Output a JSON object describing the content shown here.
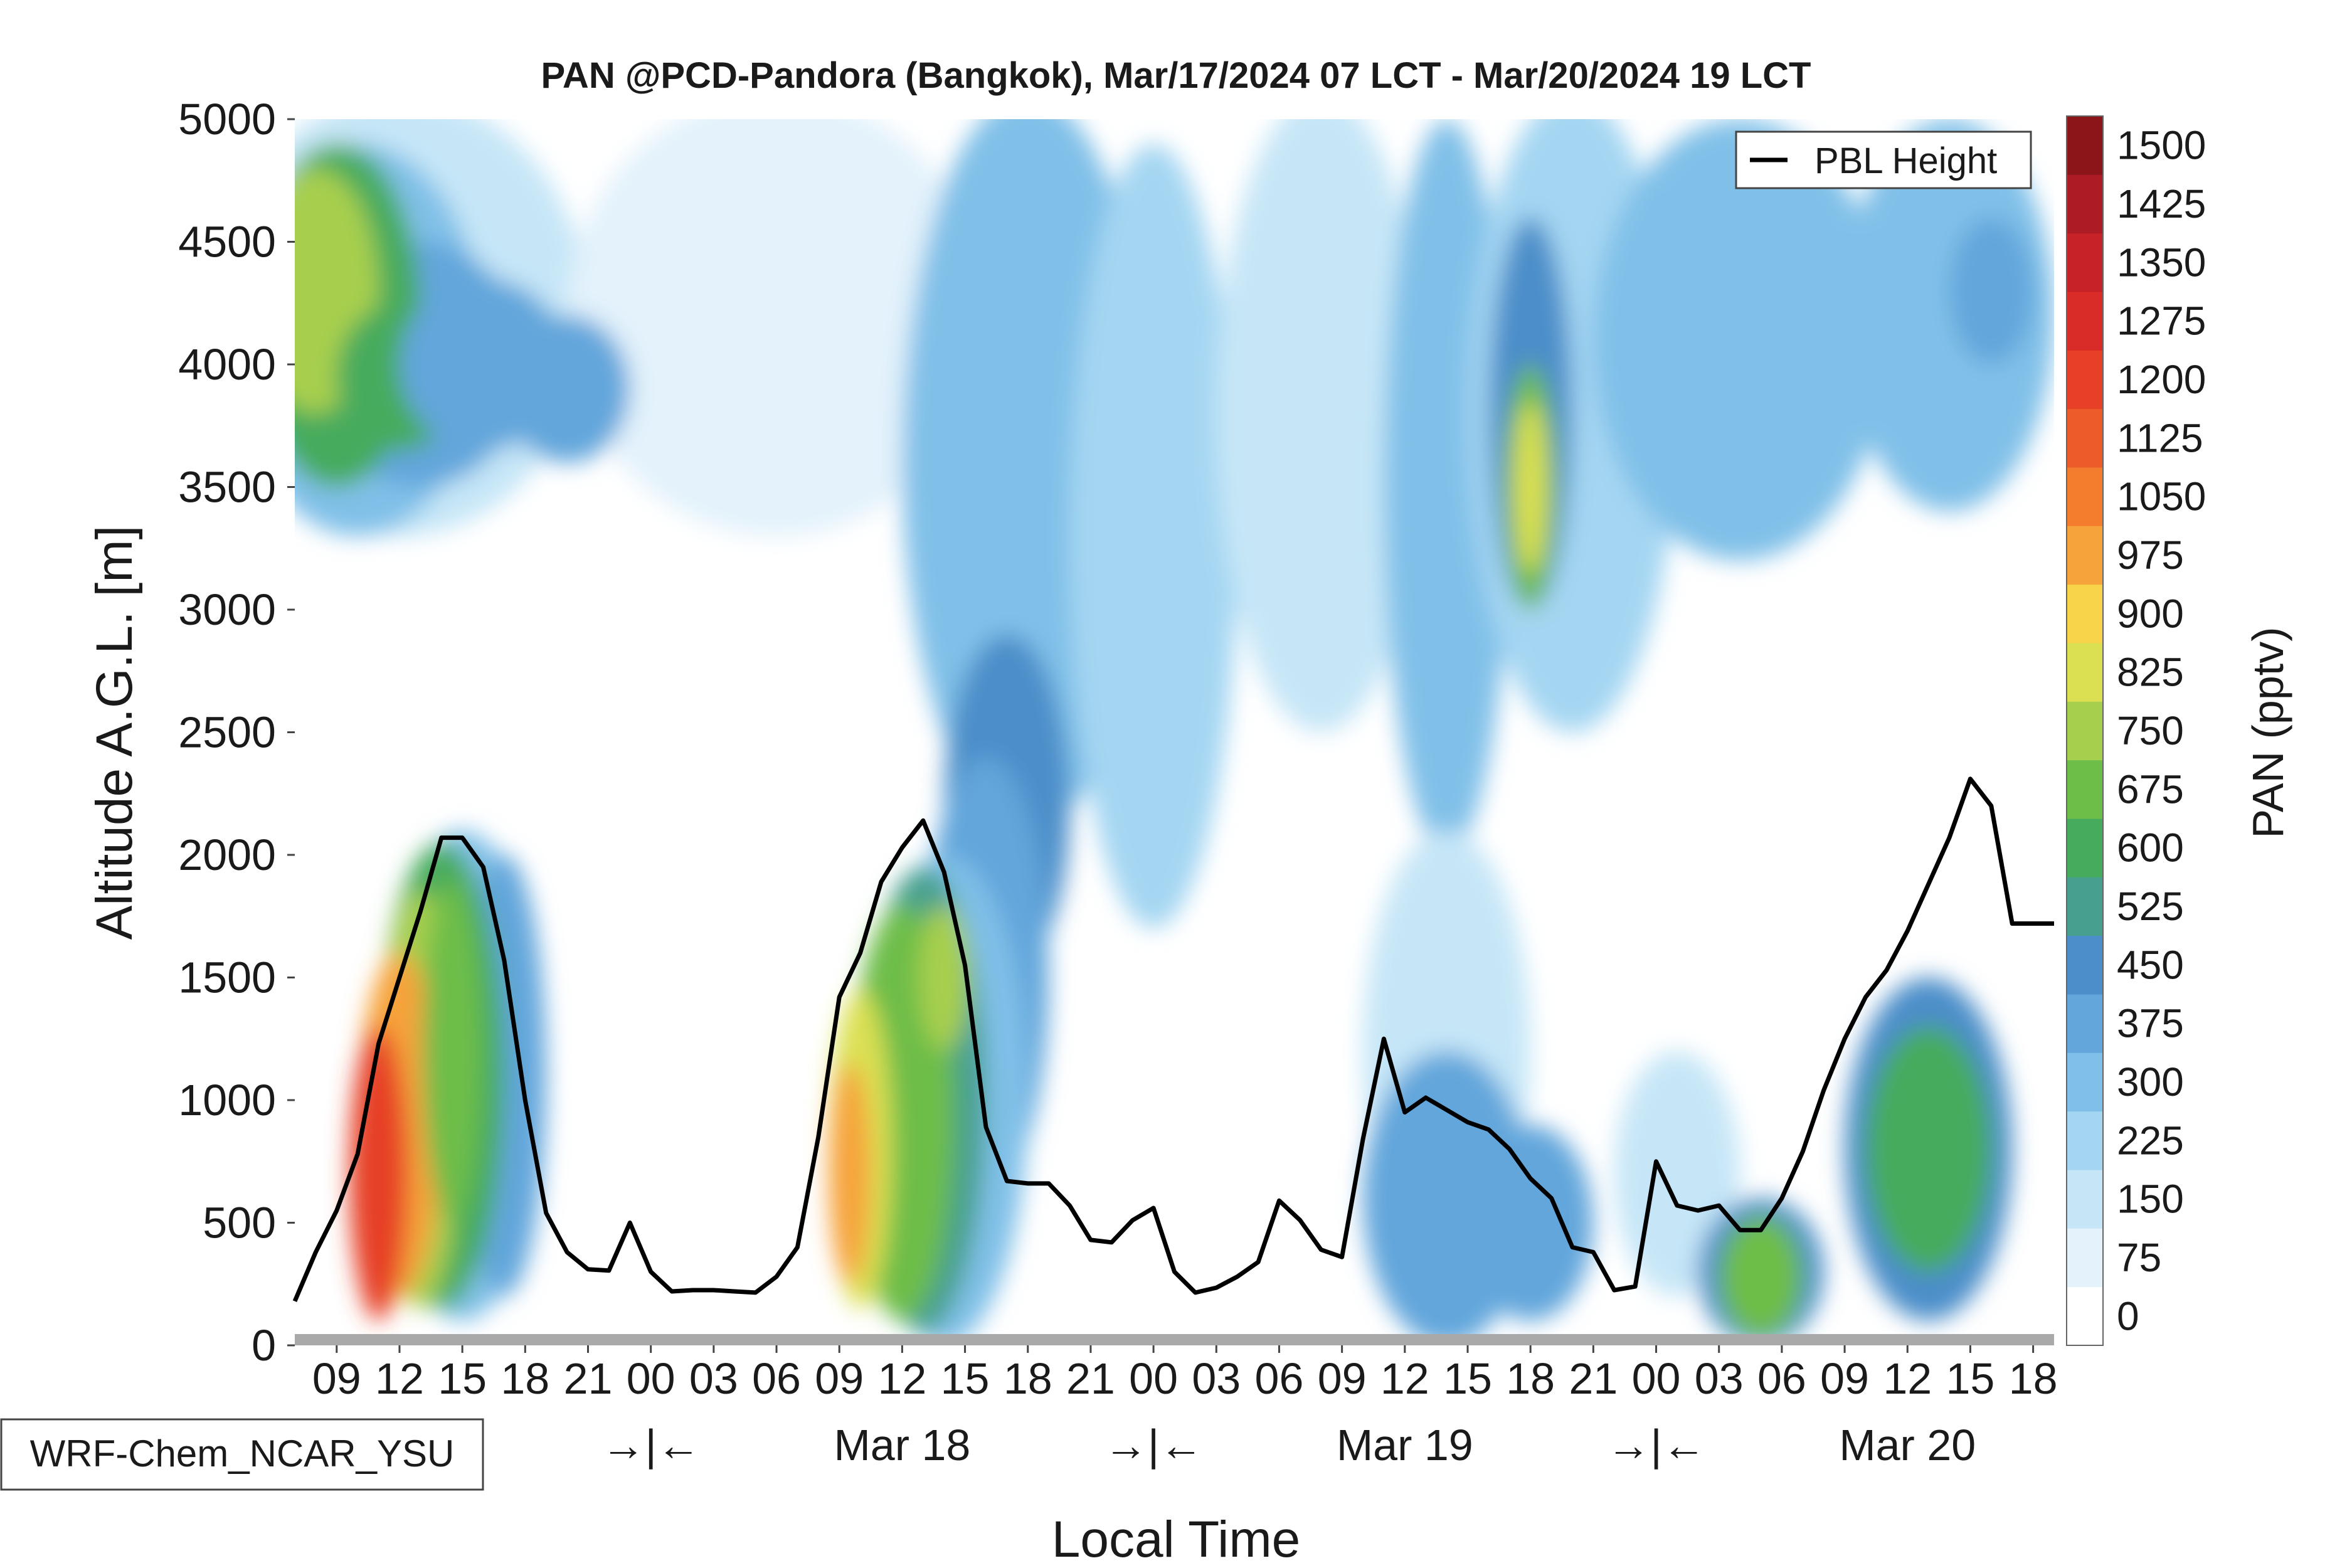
{
  "chart_data": {
    "type": "heatmap",
    "title": "PAN @PCD-Pandora (Bangkok), Mar/17/2024 07 LCT - Mar/20/2024 19 LCT",
    "xlabel": "Local Time",
    "ylabel": "Altitude A.G.L. [m]",
    "colorbar_label": "PAN (pptv)",
    "ylim": [
      0,
      5000
    ],
    "yticks": [
      0,
      500,
      1000,
      1500,
      2000,
      2500,
      3000,
      3500,
      4000,
      4500,
      5000
    ],
    "x_hours": [
      7,
      91
    ],
    "xticks_hour_labels": [
      {
        "h": 9,
        "label": "09"
      },
      {
        "h": 12,
        "label": "12"
      },
      {
        "h": 15,
        "label": "15"
      },
      {
        "h": 18,
        "label": "18"
      },
      {
        "h": 21,
        "label": "21"
      },
      {
        "h": 24,
        "label": "00"
      },
      {
        "h": 27,
        "label": "03"
      },
      {
        "h": 30,
        "label": "06"
      },
      {
        "h": 33,
        "label": "09"
      },
      {
        "h": 36,
        "label": "12"
      },
      {
        "h": 39,
        "label": "15"
      },
      {
        "h": 42,
        "label": "18"
      },
      {
        "h": 45,
        "label": "21"
      },
      {
        "h": 48,
        "label": "00"
      },
      {
        "h": 51,
        "label": "03"
      },
      {
        "h": 54,
        "label": "06"
      },
      {
        "h": 57,
        "label": "09"
      },
      {
        "h": 60,
        "label": "12"
      },
      {
        "h": 63,
        "label": "15"
      },
      {
        "h": 66,
        "label": "18"
      },
      {
        "h": 69,
        "label": "21"
      },
      {
        "h": 72,
        "label": "00"
      },
      {
        "h": 75,
        "label": "03"
      },
      {
        "h": 78,
        "label": "06"
      },
      {
        "h": 81,
        "label": "09"
      },
      {
        "h": 84,
        "label": "12"
      },
      {
        "h": 87,
        "label": "15"
      },
      {
        "h": 90,
        "label": "18"
      }
    ],
    "day_markers": [
      {
        "h": 24,
        "label": "→|←"
      },
      {
        "h": 36,
        "label": "Mar 18"
      },
      {
        "h": 48,
        "label": "→|←"
      },
      {
        "h": 60,
        "label": "Mar 19"
      },
      {
        "h": 72,
        "label": "→|←"
      },
      {
        "h": 84,
        "label": "Mar 20"
      }
    ],
    "colorbar_levels": [
      0,
      75,
      150,
      225,
      300,
      375,
      450,
      525,
      600,
      675,
      750,
      825,
      900,
      975,
      1050,
      1125,
      1200,
      1275,
      1350,
      1425,
      1500
    ],
    "colorbar_colors": [
      "#ffffff",
      "#e3f2fb",
      "#c6e6f7",
      "#a4d6f2",
      "#80c0e8",
      "#62a6db",
      "#4b8ec9",
      "#47a08f",
      "#46ab5d",
      "#6dbd49",
      "#a7cf4e",
      "#dbe052",
      "#f7d44a",
      "#f6a33b",
      "#f37d2d",
      "#ee5b2a",
      "#e64027",
      "#d92b27",
      "#c72228",
      "#ad1c25",
      "#8c1519"
    ],
    "series": [
      {
        "name": "PBL Height",
        "color": "#000000",
        "x": [
          7,
          8,
          9,
          10,
          11,
          12,
          13,
          14,
          15,
          16,
          17,
          18,
          19,
          20,
          21,
          22,
          23,
          24,
          25,
          26,
          27,
          28,
          29,
          30,
          31,
          32,
          33,
          34,
          35,
          36,
          37,
          38,
          39,
          40,
          41,
          42,
          43,
          44,
          45,
          46,
          47,
          48,
          49,
          50,
          51,
          52,
          53,
          54,
          55,
          56,
          57,
          58,
          59,
          60,
          61,
          62,
          63,
          64,
          65,
          66,
          67,
          68,
          69,
          70,
          71,
          72,
          73,
          74,
          75,
          76,
          77,
          78,
          79,
          80,
          81,
          82,
          83,
          84,
          85,
          86,
          87,
          88,
          89,
          90,
          91
        ],
        "y": [
          180,
          380,
          550,
          780,
          1230,
          1500,
          1770,
          2070,
          2070,
          1950,
          1570,
          1000,
          540,
          380,
          310,
          305,
          500,
          300,
          220,
          225,
          225,
          220,
          215,
          280,
          400,
          850,
          1420,
          1600,
          1890,
          2030,
          2140,
          1930,
          1550,
          890,
          670,
          660,
          660,
          570,
          430,
          420,
          510,
          560,
          300,
          215,
          235,
          280,
          340,
          590,
          510,
          390,
          360,
          840,
          1250,
          950,
          1010,
          960,
          910,
          880,
          800,
          680,
          600,
          400,
          380,
          225,
          240,
          750,
          570,
          550,
          570,
          470,
          470,
          600,
          790,
          1040,
          1250,
          1420,
          1530,
          1690,
          1880,
          2070,
          2310,
          2200,
          1720,
          1720,
          1720
        ]
      }
    ],
    "legend": {
      "entries": [
        "PBL Height"
      ],
      "position": "top-right"
    },
    "annotation": "WRF-Chem_NCAR_YSU",
    "pbl_height_series": "PBL Height"
  }
}
